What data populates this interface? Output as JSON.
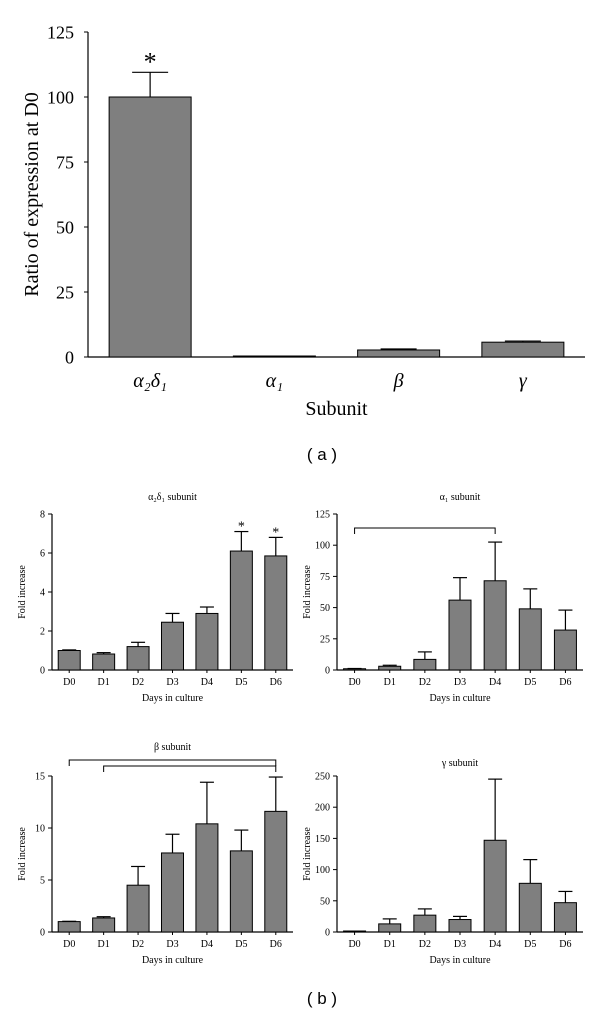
{
  "panel_labels": {
    "a": "( a )",
    "b": "( b )"
  },
  "chart_data": [
    {
      "id": "main",
      "type": "bar",
      "title": "",
      "xlabel": "Subunit",
      "ylabel": "Ratio of expression at D0",
      "ylim": [
        0,
        125
      ],
      "yticks": [
        0,
        25,
        50,
        75,
        100,
        125
      ],
      "categories": [
        "α₂δ₁",
        "α₁",
        "β",
        "γ"
      ],
      "values": [
        100,
        0.2,
        2.7,
        5.7
      ],
      "errors": [
        9.5,
        0,
        0.4,
        0.4
      ],
      "annotations": [
        {
          "category": "α₂δ₁",
          "text": "*"
        }
      ]
    },
    {
      "id": "a2d1",
      "type": "bar",
      "title": "α₂δ₁ subunit",
      "xlabel": "Days in culture",
      "ylabel": "Fold increase",
      "ylim": [
        0,
        8
      ],
      "yticks": [
        0,
        2,
        4,
        6,
        8
      ],
      "categories": [
        "D0",
        "D1",
        "D2",
        "D3",
        "D4",
        "D5",
        "D6"
      ],
      "values": [
        1.0,
        0.82,
        1.2,
        2.45,
        2.9,
        6.1,
        5.85
      ],
      "errors": [
        0.03,
        0.07,
        0.22,
        0.45,
        0.33,
        1.0,
        0.95
      ],
      "annotations": [
        {
          "category": "D5",
          "text": "*"
        },
        {
          "category": "D6",
          "text": "*"
        }
      ],
      "brackets": []
    },
    {
      "id": "a1",
      "type": "bar",
      "title": "α₁ subunit",
      "xlabel": "Days in culture",
      "ylabel": "Fold increase",
      "ylim": [
        0,
        125
      ],
      "yticks": [
        0,
        25,
        50,
        75,
        100,
        125
      ],
      "categories": [
        "D0",
        "D1",
        "D2",
        "D3",
        "D4",
        "D5",
        "D6"
      ],
      "values": [
        1,
        3,
        8.5,
        56,
        71.5,
        49,
        32
      ],
      "errors": [
        0.2,
        0.8,
        6,
        18,
        31,
        16,
        16
      ],
      "annotations": [],
      "brackets": [
        {
          "from": "D0",
          "to": "D4"
        }
      ]
    },
    {
      "id": "beta",
      "type": "bar",
      "title": "β subunit",
      "xlabel": "Days in culture",
      "ylabel": "Fold increase",
      "ylim": [
        0,
        15
      ],
      "yticks": [
        0,
        5,
        10,
        15
      ],
      "categories": [
        "D0",
        "D1",
        "D2",
        "D3",
        "D4",
        "D5",
        "D6"
      ],
      "values": [
        1.0,
        1.35,
        4.5,
        7.6,
        10.4,
        7.8,
        11.6
      ],
      "errors": [
        0.03,
        0.12,
        1.8,
        1.8,
        4.0,
        2.0,
        3.3
      ],
      "annotations": [],
      "brackets": [
        {
          "from": "D0",
          "to": "D6"
        },
        {
          "from": "D1",
          "to": "D6"
        }
      ]
    },
    {
      "id": "gamma",
      "type": "bar",
      "title": "γ subunit",
      "xlabel": "Days in culture",
      "ylabel": "Fold increase",
      "ylim": [
        0,
        250
      ],
      "yticks": [
        0,
        50,
        100,
        150,
        200,
        250
      ],
      "categories": [
        "D0",
        "D1",
        "D2",
        "D3",
        "D4",
        "D5",
        "D6"
      ],
      "values": [
        1,
        13,
        27,
        20,
        147,
        78,
        47
      ],
      "errors": [
        0.3,
        8,
        10,
        5,
        98,
        38,
        18
      ],
      "annotations": [],
      "brackets": []
    }
  ]
}
